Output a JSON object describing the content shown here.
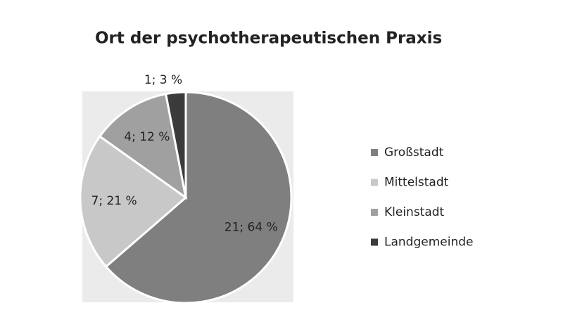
{
  "chart_data": {
    "type": "pie",
    "title": "Ort der psychotherapeutischen Praxis",
    "categories": [
      "Großstadt",
      "Mittelstadt",
      "Kleinstadt",
      "Landgemeinde"
    ],
    "values": [
      21,
      7,
      4,
      1
    ],
    "value_labels": [
      "21; 64 %",
      "7; 21 %",
      "4; 12 %",
      "1; 3 %"
    ],
    "colors": [
      "#7f7f7f",
      "#c8c8c8",
      "#a0a0a0",
      "#3b3b3b"
    ],
    "legend": "right"
  }
}
